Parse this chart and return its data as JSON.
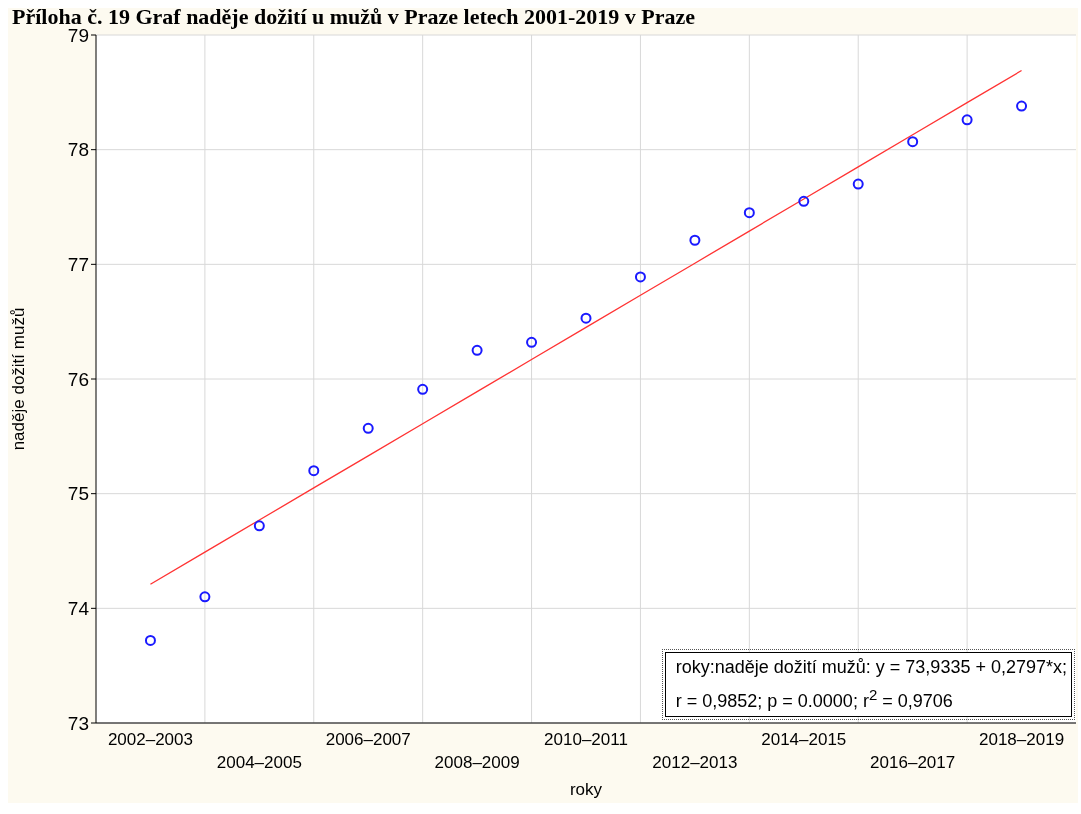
{
  "chart_data": {
    "type": "scatter",
    "title": "Příloha č. 19 Graf naděje dožití u mužů v Praze letech 2001-2019 v Praze",
    "xlabel": "roky",
    "ylabel": "naděje dožití mužů",
    "categories": [
      "2002–2003",
      null,
      "2004–2005",
      null,
      "2006–2007",
      null,
      "2008–2009",
      null,
      "2010–2011",
      null,
      "2012–2013",
      null,
      "2014–2015",
      null,
      "2016–2017",
      null,
      "2018–2019"
    ],
    "series": [
      {
        "color": "#1a1aff",
        "marker": "circle",
        "values": [
          73.72,
          74.1,
          74.72,
          75.2,
          75.57,
          75.91,
          76.25,
          76.32,
          76.53,
          76.89,
          77.21,
          77.45,
          77.55,
          77.7,
          78.07,
          78.26,
          78.38
        ]
      },
      {
        "type": "line",
        "color": "#ff3333",
        "marker": "none",
        "values": [
          74.21,
          74.49,
          74.77,
          75.05,
          75.33,
          75.61,
          75.89,
          76.17,
          76.45,
          76.73,
          77.01,
          77.29,
          77.57,
          77.85,
          78.13,
          78.41,
          78.69
        ]
      }
    ],
    "ylim": [
      73,
      79
    ],
    "yticks": [
      73,
      74,
      75,
      76,
      77,
      78,
      79
    ],
    "grid": true,
    "annotations": [
      "roky:naděje dožití mužů:   y = 73,9335 + 0,2797*x;",
      "r = 0,9852; p = 0.0000; r$^{2}$ = 0,9706"
    ]
  }
}
